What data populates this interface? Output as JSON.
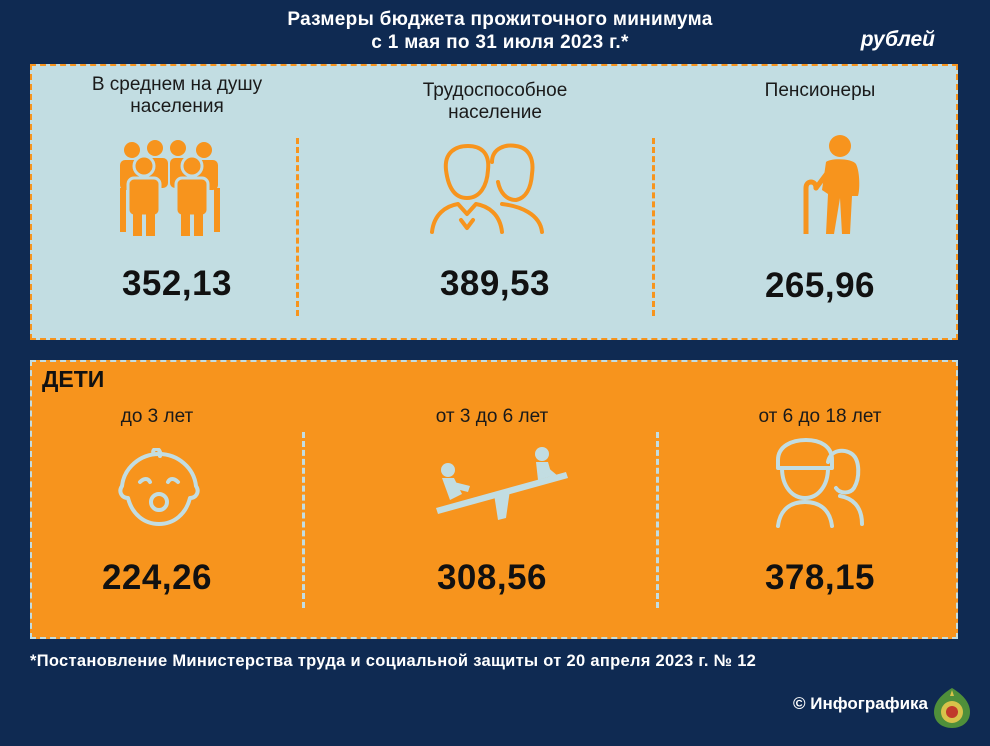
{
  "header": {
    "title_line1": "Размеры бюджета прожиточного минимума",
    "title_line2": "с 1 мая по 31 июля 2023 г.*",
    "currency": "рублей"
  },
  "adults": {
    "items": [
      {
        "label_line1": "В среднем на душу",
        "label_line2": "населения",
        "value": "352,13",
        "icon": "crowd-icon"
      },
      {
        "label_line1": "Трудоспособное",
        "label_line2": "население",
        "value": "389,53",
        "icon": "couple-icon"
      },
      {
        "label_line1": "Пенсионеры",
        "label_line2": "",
        "value": "265,96",
        "icon": "elderly-icon"
      }
    ]
  },
  "children": {
    "title": "ДЕТИ",
    "items": [
      {
        "label": "до 3 лет",
        "value": "224,26",
        "icon": "baby-icon"
      },
      {
        "label": "от 3 до 6 лет",
        "value": "308,56",
        "icon": "seesaw-icon"
      },
      {
        "label": "от 6 до 18 лет",
        "value": "378,15",
        "icon": "teens-icon"
      }
    ]
  },
  "footer": {
    "footnote": "*Постановление Министерства труда и социальной защиты от 20 апреля 2023 г. № 12",
    "credit": "© Инфографика"
  },
  "colors": {
    "background": "#0f2a52",
    "accent_orange": "#f7941d",
    "panel_light": "#c2dde2"
  }
}
